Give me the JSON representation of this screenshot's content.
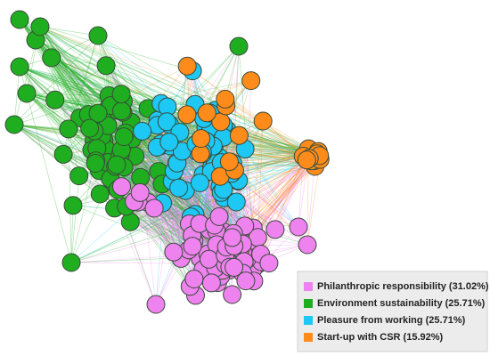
{
  "legend": [
    {
      "label": "Philanthropic responsibility (31.02%)",
      "color": "#ee82ee"
    },
    {
      "label": "Environment sustainability (25.71%)",
      "color": "#1fae1f"
    },
    {
      "label": "Pleasure from working (25.71%)",
      "color": "#1ec8f5"
    },
    {
      "label": "Start-up with CSR (15.92%)",
      "color": "#ff8c1a"
    }
  ]
}
